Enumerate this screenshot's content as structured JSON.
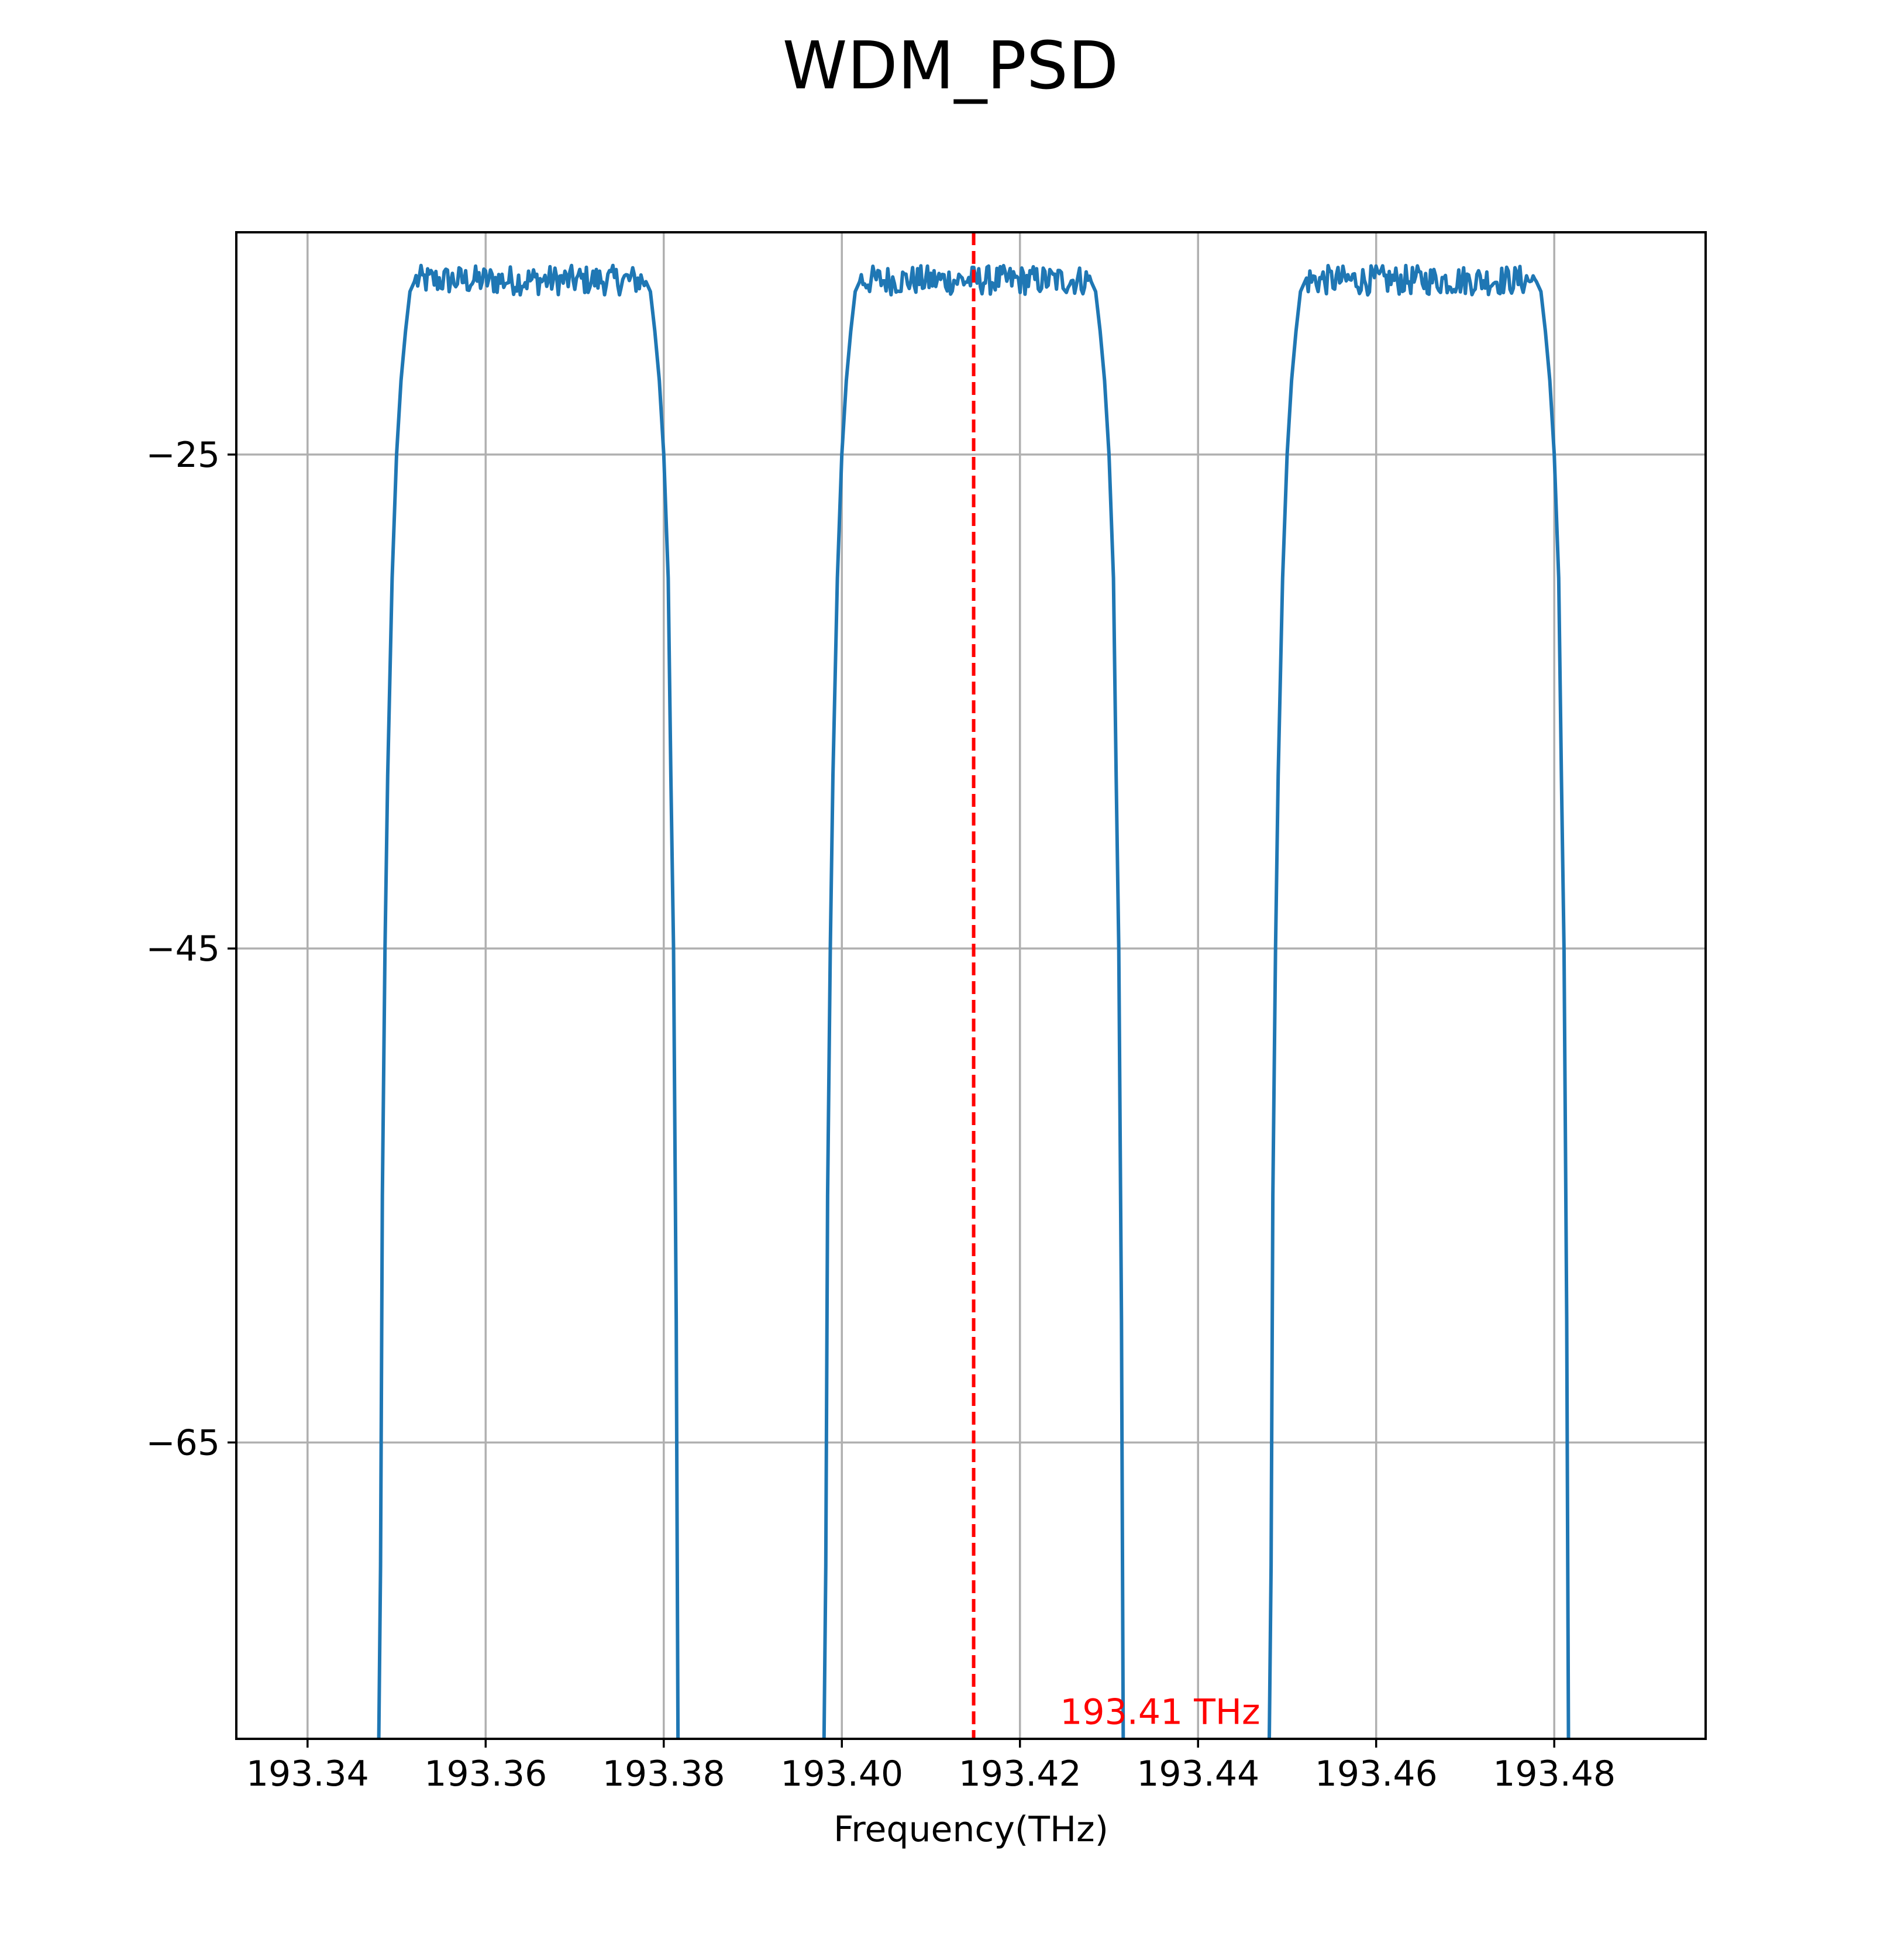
{
  "chart_data": {
    "type": "line",
    "title": "WDM_PSD",
    "xlabel": "Frequency(THz)",
    "ylabel": "",
    "xlim": [
      193.332,
      193.497
    ],
    "ylim": [
      -77,
      -16
    ],
    "x_ticks": [
      {
        "value": 193.34,
        "label": "193.34"
      },
      {
        "value": 193.36,
        "label": "193.36"
      },
      {
        "value": 193.38,
        "label": "193.38"
      },
      {
        "value": 193.4,
        "label": "193.40"
      },
      {
        "value": 193.42,
        "label": "193.42"
      },
      {
        "value": 193.44,
        "label": "193.44"
      },
      {
        "value": 193.46,
        "label": "193.46"
      },
      {
        "value": 193.48,
        "label": "193.48"
      }
    ],
    "y_ticks": [
      {
        "value": -25,
        "label": "−25"
      },
      {
        "value": -45,
        "label": "−45"
      },
      {
        "value": -65,
        "label": "−65"
      }
    ],
    "grid": true,
    "series": [
      {
        "color": "#1f77b4",
        "channels": [
          {
            "center": 193.3648,
            "x": [
              193.348,
              193.3482,
              193.3484,
              193.3487,
              193.349,
              193.3495,
              193.35,
              193.3505,
              193.351,
              193.3515,
              193.352,
              193.378,
              193.3785,
              193.379,
              193.3795,
              193.38,
              193.3805,
              193.3808,
              193.3811,
              193.3814,
              193.3816
            ],
            "y": [
              -77.0,
              -70.0,
              -55.0,
              -45.0,
              -38.0,
              -30.0,
              -25.0,
              -22.0,
              -20.0,
              -18.4,
              -18.0,
              -18.0,
              -18.4,
              -20.0,
              -22.0,
              -25.0,
              -30.0,
              -38.0,
              -45.0,
              -60.0,
              -77.0
            ]
          },
          {
            "center": 193.4148,
            "x": [
              193.398,
              193.3982,
              193.3984,
              193.3987,
              193.399,
              193.3995,
              193.4,
              193.4005,
              193.401,
              193.4015,
              193.402,
              193.428,
              193.4285,
              193.429,
              193.4295,
              193.43,
              193.4305,
              193.4308,
              193.4311,
              193.4314,
              193.4316
            ],
            "y": [
              -77.0,
              -70.0,
              -55.0,
              -45.0,
              -38.0,
              -30.0,
              -25.0,
              -22.0,
              -20.0,
              -18.4,
              -18.0,
              -18.0,
              -18.4,
              -20.0,
              -22.0,
              -25.0,
              -30.0,
              -38.0,
              -45.0,
              -60.0,
              -77.0
            ]
          },
          {
            "center": 193.4648,
            "x": [
              193.448,
              193.4482,
              193.4484,
              193.4487,
              193.449,
              193.4495,
              193.45,
              193.4505,
              193.451,
              193.4515,
              193.452,
              193.478,
              193.4785,
              193.479,
              193.4795,
              193.48,
              193.4805,
              193.4808,
              193.4811,
              193.4814,
              193.4816
            ],
            "y": [
              -77.0,
              -70.0,
              -55.0,
              -45.0,
              -38.0,
              -30.0,
              -25.0,
              -22.0,
              -20.0,
              -18.4,
              -18.0,
              -18.0,
              -18.4,
              -20.0,
              -22.0,
              -25.0,
              -30.0,
              -38.0,
              -45.0,
              -60.0,
              -77.0
            ]
          }
        ],
        "plateau_ripple_db": 0.6
      }
    ],
    "annotation": {
      "text": "193.41 THz",
      "x": 193.4245,
      "y": -76.4,
      "color": "#ff0000"
    },
    "marker_line": {
      "x": 193.4148,
      "color": "#ff0000",
      "style": "dashed"
    }
  }
}
